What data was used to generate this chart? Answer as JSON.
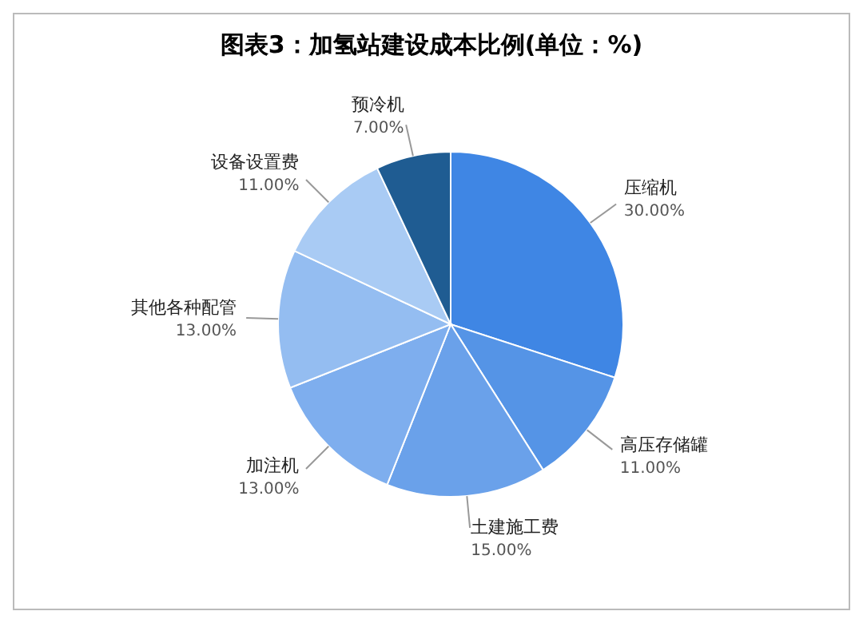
{
  "chart_data": {
    "type": "pie",
    "title": "图表3：加氢站建设成本比例(单位：%)",
    "categories": [
      "压缩机",
      "高压存储罐",
      "土建施工费",
      "加注机",
      "其他各种配管",
      "设备设置费",
      "预冷机"
    ],
    "values": [
      30,
      11,
      15,
      13,
      13,
      11,
      7
    ],
    "value_labels": [
      "30.00%",
      "11.00%",
      "15.00%",
      "13.00%",
      "13.00%",
      "11.00%",
      "7.00%"
    ],
    "colors": [
      "#3f86e4",
      "#5594e6",
      "#6aa1ea",
      "#7eaeee",
      "#94bdf1",
      "#a9cbf4",
      "#1f5c92"
    ],
    "legend": false
  }
}
